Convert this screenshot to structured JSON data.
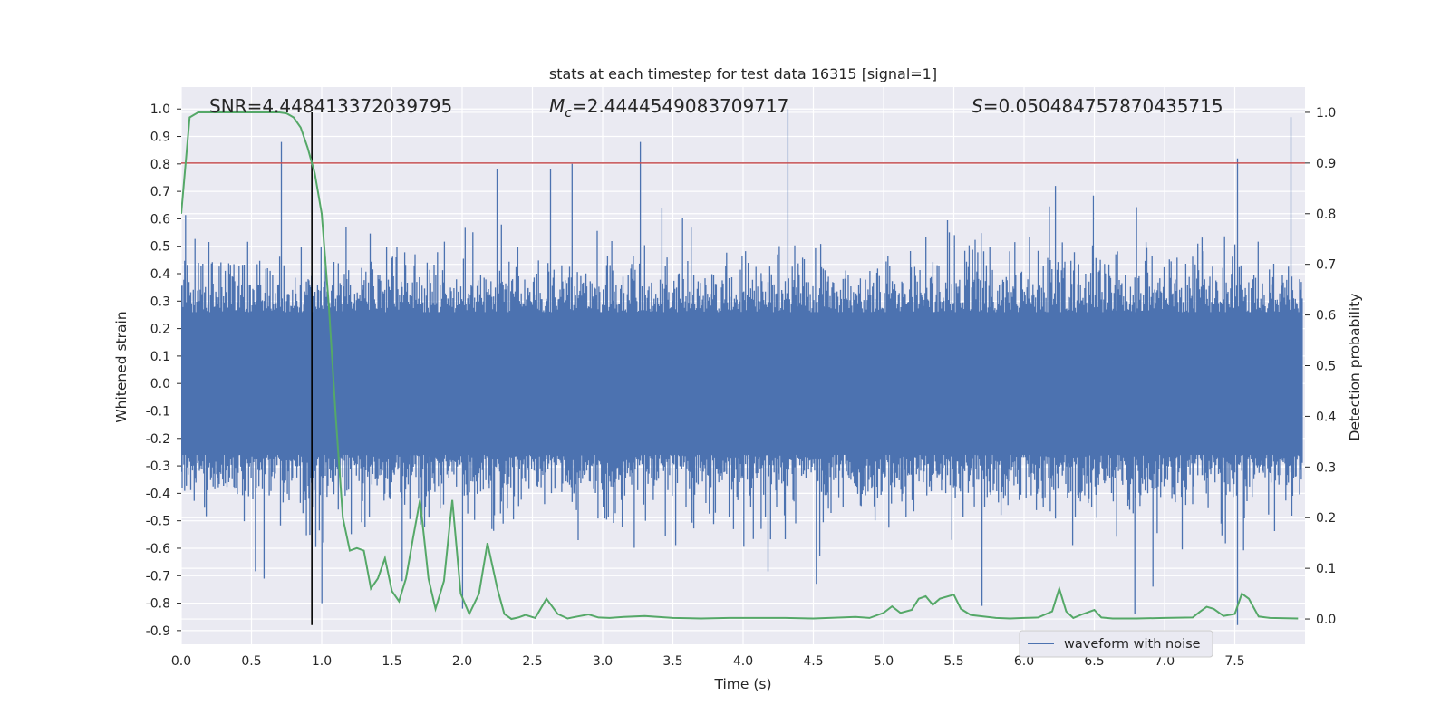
{
  "chart_data": {
    "type": "line",
    "title": "stats at each timestep for test data 16315 [signal=1]",
    "xlabel": "Time (s)",
    "ylabel": "Whitened strain",
    "y2label": "Detection probability",
    "xlim": [
      0.0,
      8.0
    ],
    "ylim": [
      -0.95,
      1.08
    ],
    "y2lim": [
      -0.05,
      1.05
    ],
    "xticks": [
      0.0,
      0.5,
      1.0,
      1.5,
      2.0,
      2.5,
      3.0,
      3.5,
      4.0,
      4.5,
      5.0,
      5.5,
      6.0,
      6.5,
      7.0,
      7.5
    ],
    "yticks": [
      -0.9,
      -0.8,
      -0.7,
      -0.6,
      -0.5,
      -0.4,
      -0.3,
      -0.2,
      -0.1,
      0.0,
      0.1,
      0.2,
      0.3,
      0.4,
      0.5,
      0.6,
      0.7,
      0.8,
      0.9,
      1.0
    ],
    "y2ticks": [
      0.0,
      0.1,
      0.2,
      0.3,
      0.4,
      0.5,
      0.6,
      0.7,
      0.8,
      0.9,
      1.0
    ],
    "grid": true,
    "legend": {
      "position": "bottom-right",
      "entries": [
        "waveform with noise"
      ]
    },
    "annotations": {
      "snr": {
        "prefix": "SNR",
        "value": "=4.448413372039795"
      },
      "mc": {
        "symbol": "M",
        "subscript": "c",
        "value": "=2.4444549083709717"
      },
      "s": {
        "symbol": "S",
        "value": "=0.050484757870435715"
      }
    },
    "threshold": {
      "axis": "y2",
      "value": 0.9,
      "color": "#c44e52"
    },
    "marker_time": 0.93,
    "series": [
      {
        "name": "waveform with noise",
        "axis": "y",
        "color": "#4c72b0",
        "description": "noisy whitened strain sampled densely over 0–8 s, bulk amplitude about ±0.3 with spikes",
        "duration": 7.98,
        "core_amplitude": 0.3,
        "spikes": [
          {
            "t": 0.71,
            "v": 0.88
          },
          {
            "t": 1.0,
            "v": -0.8
          },
          {
            "t": 1.57,
            "v": -0.72
          },
          {
            "t": 2.0,
            "v": -0.82
          },
          {
            "t": 2.25,
            "v": 0.78
          },
          {
            "t": 2.63,
            "v": 0.78
          },
          {
            "t": 2.78,
            "v": 0.8
          },
          {
            "t": 3.27,
            "v": 0.88
          },
          {
            "t": 4.32,
            "v": 1.0
          },
          {
            "t": 4.52,
            "v": -0.73
          },
          {
            "t": 5.7,
            "v": -0.81
          },
          {
            "t": 6.22,
            "v": 0.72
          },
          {
            "t": 6.79,
            "v": -0.84
          },
          {
            "t": 6.92,
            "v": -0.74
          },
          {
            "t": 7.52,
            "v": 0.82
          },
          {
            "t": 7.52,
            "v": -0.88
          },
          {
            "t": 7.9,
            "v": 0.97
          }
        ]
      },
      {
        "name": "detection probability",
        "axis": "y2",
        "color": "#55a868",
        "x": [
          0.0,
          0.06,
          0.12,
          0.2,
          0.3,
          0.4,
          0.5,
          0.6,
          0.7,
          0.75,
          0.8,
          0.85,
          0.9,
          0.95,
          1.0,
          1.05,
          1.1,
          1.15,
          1.2,
          1.25,
          1.3,
          1.35,
          1.4,
          1.45,
          1.5,
          1.55,
          1.6,
          1.65,
          1.7,
          1.76,
          1.81,
          1.87,
          1.93,
          1.99,
          2.05,
          2.12,
          2.18,
          2.25,
          2.3,
          2.35,
          2.4,
          2.45,
          2.52,
          2.6,
          2.68,
          2.75,
          2.82,
          2.9,
          2.97,
          3.05,
          3.15,
          3.3,
          3.5,
          3.7,
          3.9,
          4.1,
          4.3,
          4.5,
          4.7,
          4.8,
          4.9,
          5.0,
          5.06,
          5.12,
          5.2,
          5.25,
          5.3,
          5.35,
          5.4,
          5.5,
          5.55,
          5.62,
          5.8,
          5.9,
          6.0,
          6.1,
          6.2,
          6.25,
          6.3,
          6.35,
          6.42,
          6.5,
          6.55,
          6.63,
          6.8,
          7.0,
          7.2,
          7.25,
          7.3,
          7.35,
          7.42,
          7.5,
          7.55,
          7.6,
          7.67,
          7.75,
          7.95
        ],
        "y": [
          0.8,
          0.99,
          1.0,
          1.0,
          1.0,
          1.0,
          1.0,
          1.0,
          1.0,
          0.998,
          0.99,
          0.97,
          0.93,
          0.88,
          0.8,
          0.62,
          0.4,
          0.2,
          0.135,
          0.14,
          0.135,
          0.06,
          0.08,
          0.12,
          0.055,
          0.035,
          0.08,
          0.16,
          0.235,
          0.08,
          0.02,
          0.075,
          0.235,
          0.05,
          0.01,
          0.05,
          0.15,
          0.06,
          0.01,
          0.0,
          0.003,
          0.008,
          0.002,
          0.04,
          0.01,
          0.001,
          0.005,
          0.009,
          0.003,
          0.002,
          0.004,
          0.006,
          0.002,
          0.001,
          0.002,
          0.002,
          0.002,
          0.001,
          0.003,
          0.004,
          0.002,
          0.012,
          0.025,
          0.012,
          0.018,
          0.04,
          0.045,
          0.028,
          0.04,
          0.048,
          0.02,
          0.008,
          0.002,
          0.001,
          0.002,
          0.003,
          0.015,
          0.06,
          0.015,
          0.002,
          0.01,
          0.018,
          0.003,
          0.001,
          0.001,
          0.002,
          0.003,
          0.014,
          0.024,
          0.02,
          0.006,
          0.01,
          0.05,
          0.04,
          0.005,
          0.002,
          0.001
        ]
      }
    ]
  }
}
